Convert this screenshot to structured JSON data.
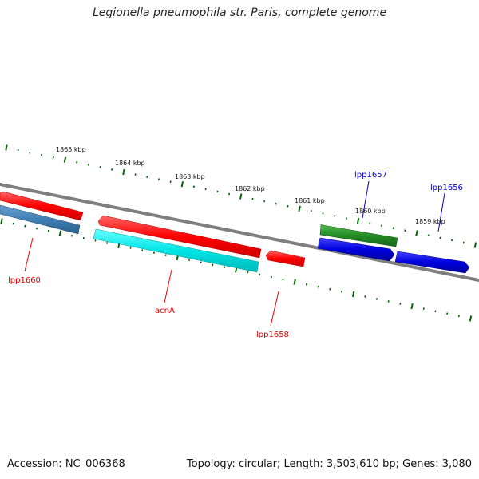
{
  "title": "Legionella pneumophila str. Paris, complete genome",
  "footer": {
    "accession": "Accession: NC_006368",
    "summary": "Topology: circular; Length: 3,503,610 bp; Genes: 3,080"
  },
  "ruler": {
    "labels": [
      "1865 kbp",
      "1864 kbp",
      "1863 kbp",
      "1862 kbp",
      "1861 kbp",
      "1860 kbp",
      "1859 kbp"
    ]
  },
  "genes": [
    {
      "name": "lpp1660",
      "color": "#ff0000"
    },
    {
      "name": "acnA",
      "color": "#ff0000"
    },
    {
      "name": "lpp1658",
      "color": "#ff0000"
    },
    {
      "name": "lpp1657",
      "color": "#0000cc"
    },
    {
      "name": "lpp1656",
      "color": "#0000cc"
    }
  ],
  "colors": {
    "tick": "#006600",
    "backbone": "#808080",
    "red": "#ff0000",
    "cyan": "#00e5e5",
    "steel": "#3f7fb5",
    "green": "#228b22",
    "blue": "#0000dd"
  }
}
